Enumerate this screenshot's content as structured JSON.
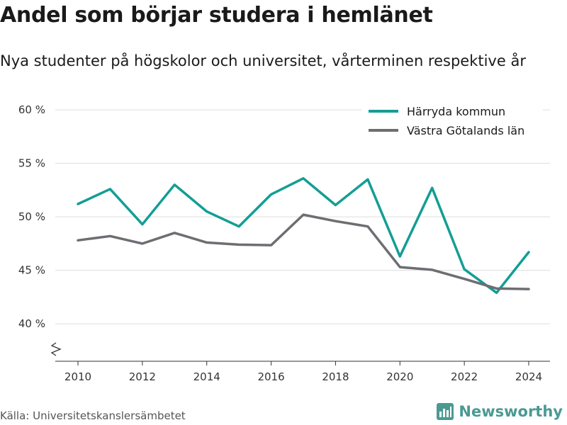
{
  "chart_data": {
    "type": "line",
    "title": "Andel som börjar studera i hemlänet",
    "subtitle": "Nya studenter på högskolor och universitet, vårterminen respektive år",
    "x": [
      2010,
      2011,
      2012,
      2013,
      2014,
      2015,
      2016,
      2017,
      2018,
      2019,
      2020,
      2021,
      2022,
      2023,
      2024
    ],
    "x_ticks": [
      2010,
      2012,
      2014,
      2016,
      2018,
      2020,
      2022,
      2024
    ],
    "y_ticks": [
      40,
      45,
      50,
      55,
      60
    ],
    "y_tick_suffix": " %",
    "ylim": [
      36.5,
      61
    ],
    "y_axis_break": true,
    "grid": true,
    "legend_position": "top-right",
    "series": [
      {
        "name": "Härryda kommun",
        "color": "#139e94",
        "values": [
          51.2,
          52.6,
          49.3,
          53.0,
          50.5,
          49.1,
          52.1,
          53.6,
          51.1,
          53.5,
          46.3,
          52.7,
          45.1,
          42.9,
          46.7
        ]
      },
      {
        "name": "Västra Götalands län",
        "color": "#6d6d72",
        "values": [
          47.8,
          48.2,
          47.5,
          48.5,
          47.6,
          47.4,
          47.35,
          50.2,
          49.6,
          49.1,
          45.3,
          45.05,
          44.2,
          43.3,
          43.25
        ]
      }
    ]
  },
  "footer": {
    "source": "Källa: Universitetskanslersämbetet",
    "brand": "Newsworthy",
    "brand_color": "#4a9a93"
  },
  "icons": {
    "brand_logo": "newsworthy-logo-icon"
  }
}
